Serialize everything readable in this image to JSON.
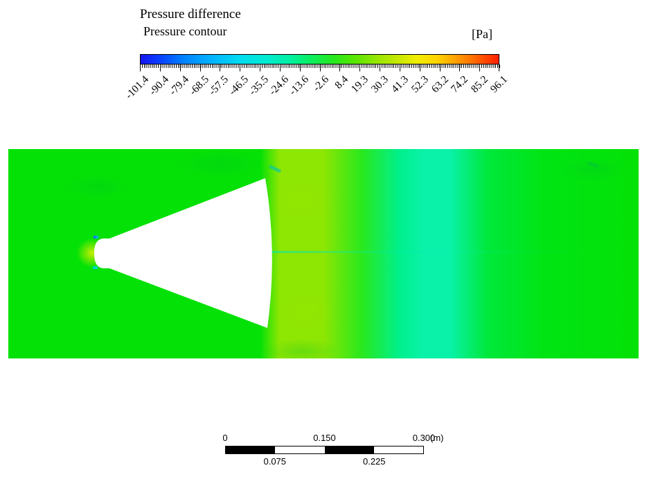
{
  "header": {
    "title": "Pressure difference",
    "subtitle": "Pressure contour",
    "unit": "[Pa]"
  },
  "colorbar": {
    "tick_labels": [
      "-101.4",
      "-90.4",
      "-79.4",
      "-68.5",
      "-57.5",
      "-46.5",
      "-35.5",
      "-24.6",
      "-13.6",
      "-2.6",
      "8.4",
      "19.3",
      "30.3",
      "41.3",
      "52.3",
      "63.2",
      "74.2",
      "85.2",
      "96.1"
    ],
    "gradient_stops": [
      "#1616f0 0%",
      "#0a3cff 5%",
      "#0082ff 12%",
      "#00b4ff 20%",
      "#00dcf0 28%",
      "#00ead2 35%",
      "#00f0a0 42%",
      "#0cee5a 48%",
      "#28e81e 54%",
      "#5ae600 60%",
      "#96e600 66%",
      "#c8e800 72%",
      "#f0ee00 77%",
      "#ffd200 83%",
      "#ffaa00 87%",
      "#ff7800 92%",
      "#ff1e00 100%"
    ]
  },
  "contour": {
    "palette": {
      "green_left": "#04e106",
      "band_yellow": "#8ee603",
      "green_mid": "#2ae81c",
      "cyan_soft": "#00f08c",
      "band_cyan": "#0af2aa",
      "green_r1": "#00e83c",
      "green_r2": "#00e414",
      "nose_glow": "rgba(232,240,0,0.85)",
      "speck_top": "#00c8ff",
      "speck_bottom": "#00d8c8",
      "patch_yellow": "rgba(150,232,0,0.55)",
      "wake": "rgba(0,232,180,0.6)",
      "mottle": "rgba(0,195,40,0.28)"
    }
  },
  "scalebar": {
    "top_labels": [
      "0",
      "0.150",
      "0.300"
    ],
    "unit": "(m)",
    "bottom_labels": [
      "0.075",
      "0.225"
    ],
    "segments": [
      "#000000",
      "#ffffff",
      "#000000",
      "#ffffff"
    ]
  },
  "chart_data": {
    "type": "heatmap",
    "title": "Pressure difference",
    "subtitle": "Pressure contour",
    "unit": "Pa",
    "colormap": "rainbow",
    "colorbar_ticks": [
      -101.4,
      -90.4,
      -79.4,
      -68.5,
      -57.5,
      -46.5,
      -35.5,
      -24.6,
      -13.6,
      -2.6,
      8.4,
      19.3,
      30.3,
      41.3,
      52.3,
      63.2,
      74.2,
      85.2,
      96.1
    ],
    "colorbar_range": [
      -101.4,
      96.1
    ],
    "scale_bar": {
      "ticks_m": [
        0,
        0.075,
        0.15,
        0.225,
        0.3
      ],
      "unit": "m"
    },
    "annotations": "2D pressure contour around a white fan/cone-shaped body; field mostly green (~-3 to 8 Pa), yellow-green band (~19 Pa) just downstream of the cone, cyan band (~-14 to -25 Pa) further downstream, small high/low-pressure specks at the nose"
  }
}
